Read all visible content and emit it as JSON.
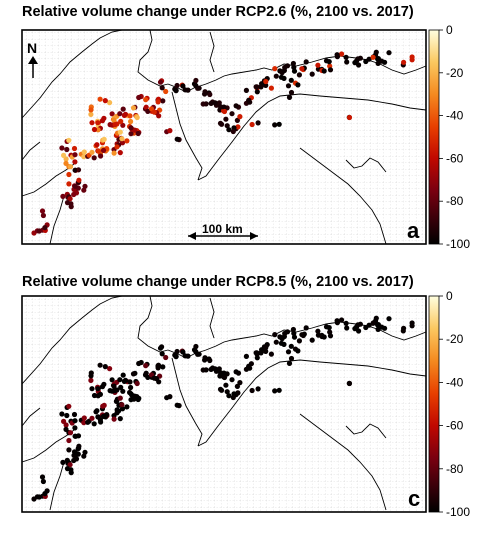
{
  "chart_data": [
    {
      "panel": "a",
      "type": "scatter",
      "title": "Relative volume change under RCP2.6 (%, 2100 vs. 2017)",
      "colorbar": {
        "ticks": [
          "0",
          "-20",
          "-40",
          "-60",
          "-80",
          "-100"
        ],
        "range": [
          -100,
          0
        ]
      },
      "scale_bar_label": "100 km",
      "north_label": "N",
      "panel_letter": "a",
      "points_note": "Glacier points colored by relative volume change; majority near -100, clusters of -20 to -60 in the western/central ranges",
      "clusters": [
        {
          "region": "far-west",
          "value": -75
        },
        {
          "region": "west",
          "value": -45
        },
        {
          "region": "north-west",
          "value": -35
        },
        {
          "region": "central",
          "value": -90
        },
        {
          "region": "east",
          "value": -95
        }
      ]
    },
    {
      "panel": "c",
      "type": "scatter",
      "title": "Relative volume change under RCP8.5 (%, 2100 vs. 2017)",
      "colorbar": {
        "ticks": [
          "0",
          "-20",
          "-40",
          "-60",
          "-80",
          "-100"
        ],
        "range": [
          -100,
          0
        ]
      },
      "panel_letter": "c",
      "points_note": "Nearly all glaciers at -100, a few at -70 to -80 in the west",
      "clusters": [
        {
          "region": "far-west",
          "value": -98
        },
        {
          "region": "west",
          "value": -80
        },
        {
          "region": "central",
          "value": -100
        },
        {
          "region": "east",
          "value": -100
        }
      ]
    }
  ],
  "colors": {
    "frame": "#000000",
    "grid": "#b0b0b0",
    "colormap": [
      "#000000",
      "#5a0010",
      "#b00000",
      "#e03000",
      "#f07010",
      "#f8b040",
      "#fde080",
      "#ffffe0"
    ]
  }
}
